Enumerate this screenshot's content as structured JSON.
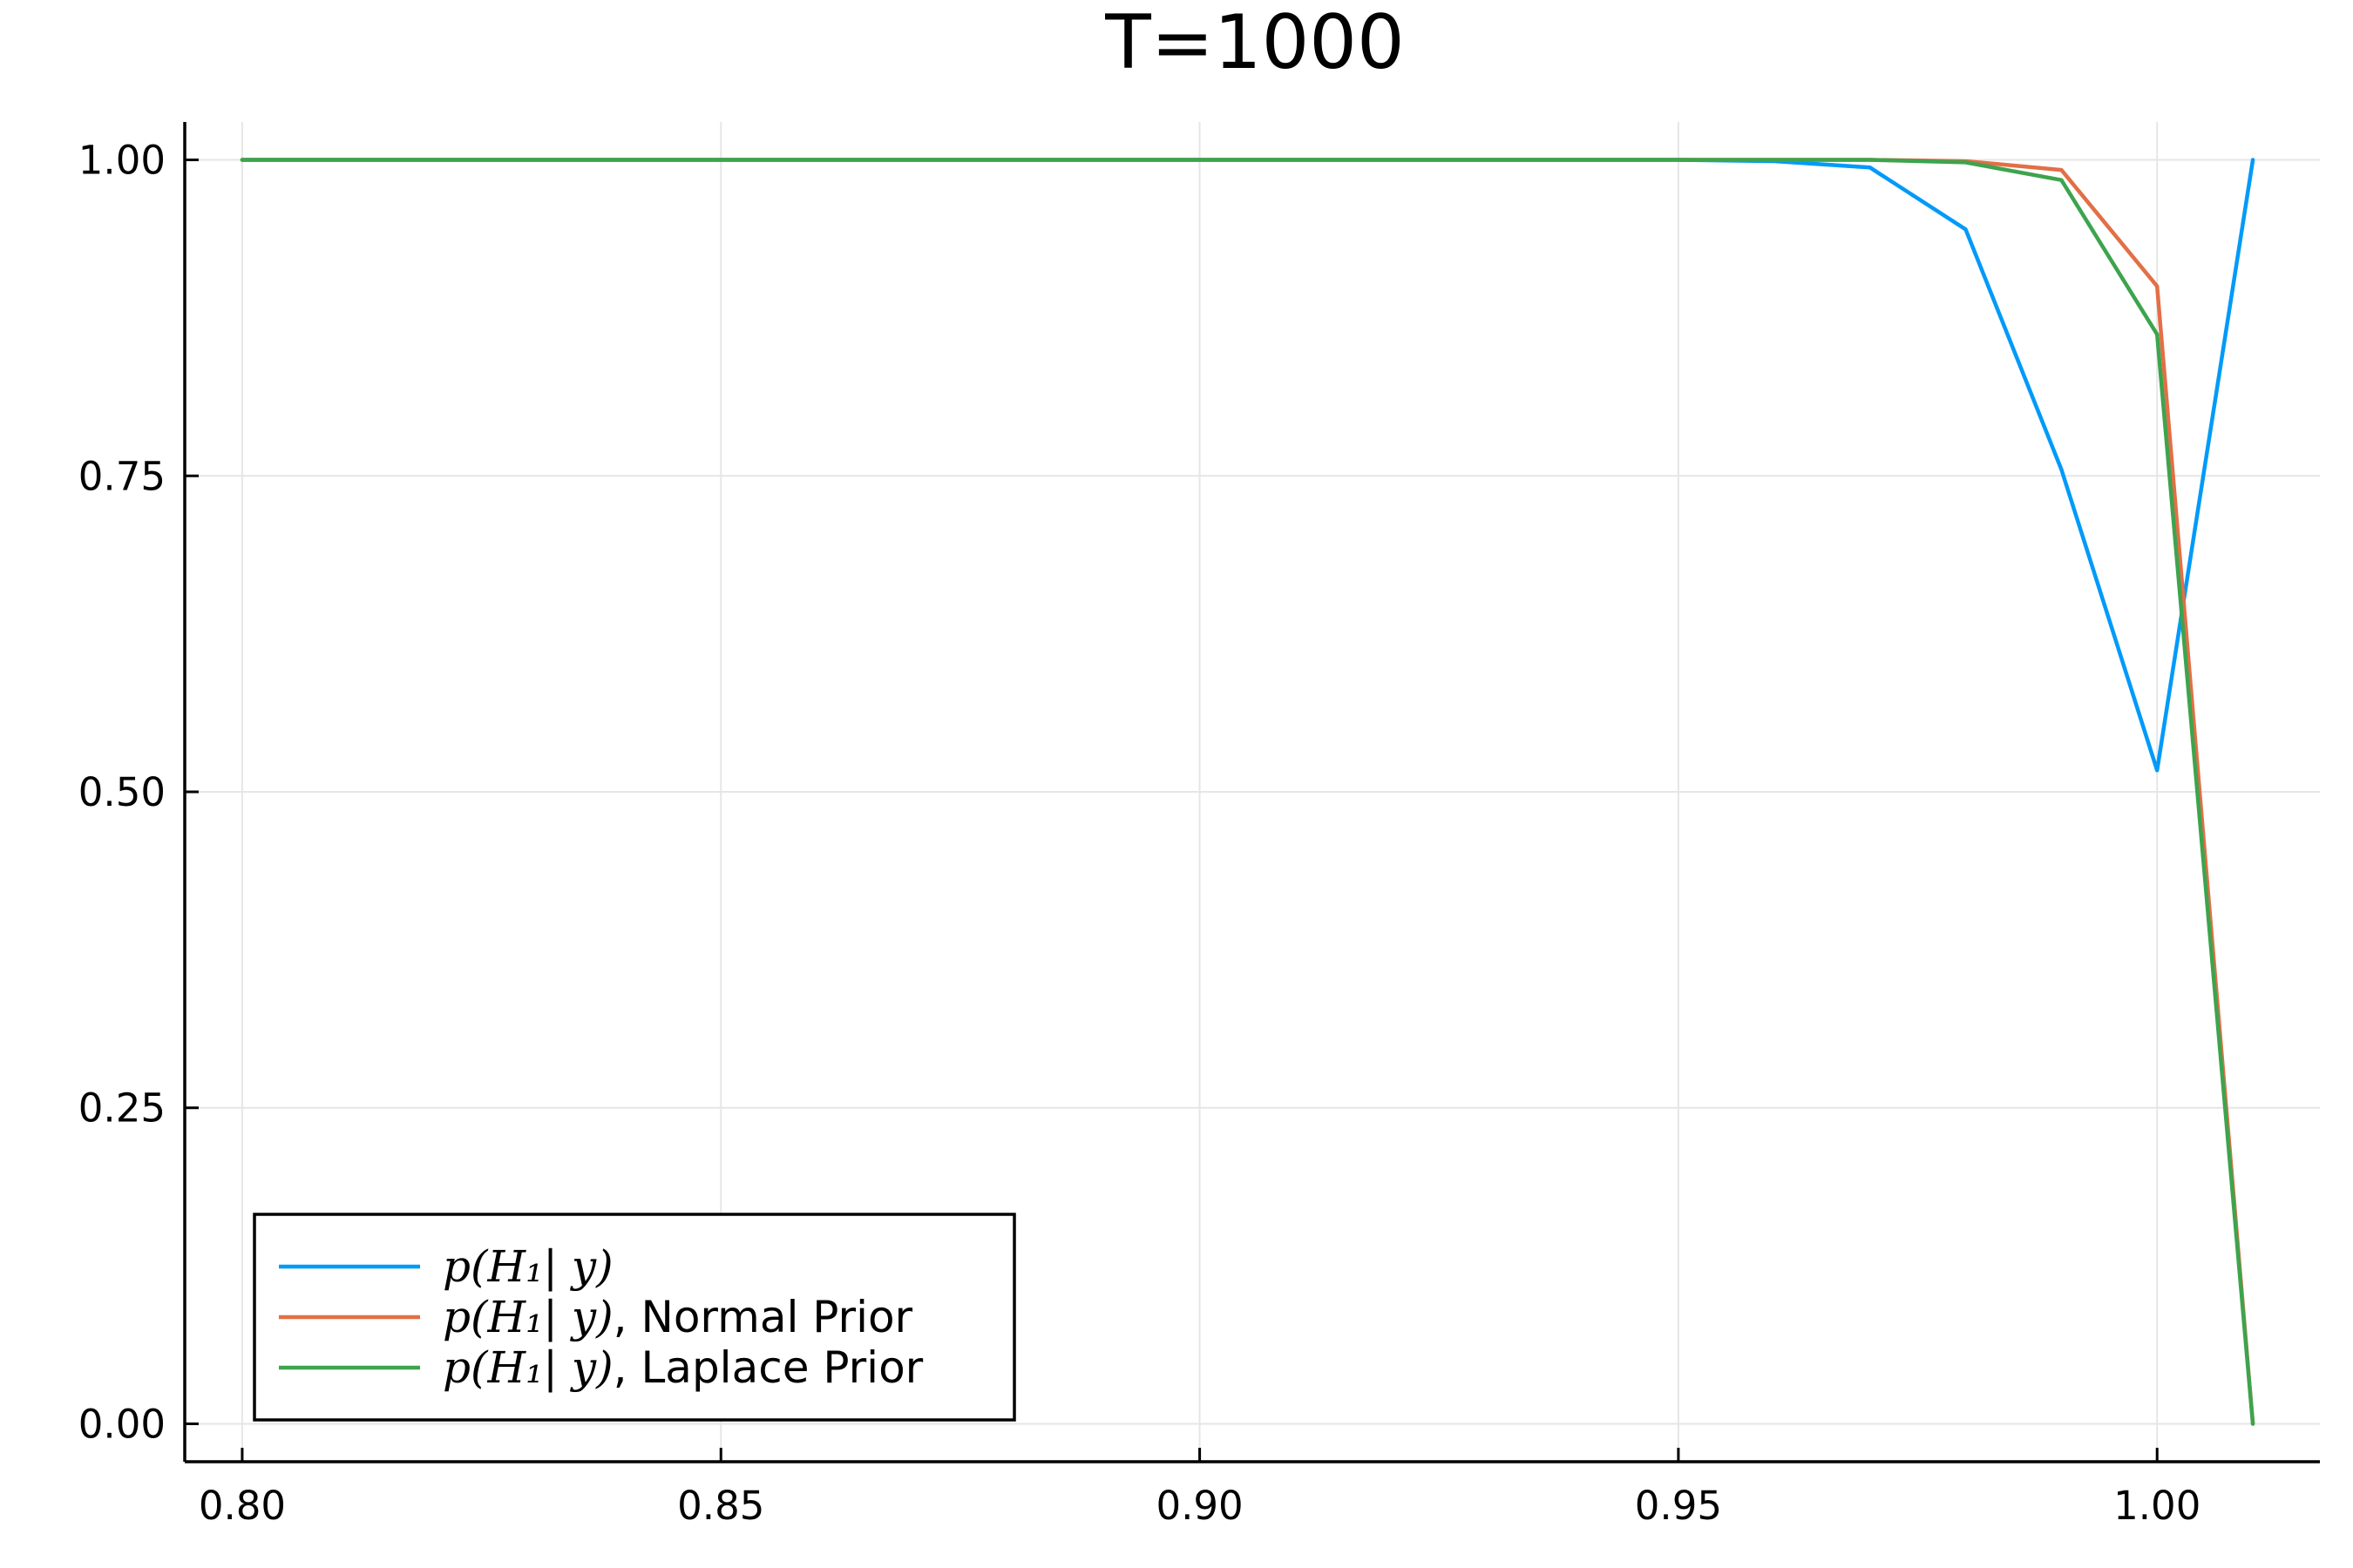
{
  "chart_data": {
    "type": "line",
    "title": "T=1000",
    "xlabel": "",
    "ylabel": "",
    "xlim": [
      0.794,
      1.017
    ],
    "ylim": [
      -0.03,
      1.03
    ],
    "xticks": [
      0.8,
      0.85,
      0.9,
      0.95,
      1.0
    ],
    "xtick_labels": [
      "0.80",
      "0.85",
      "0.90",
      "0.95",
      "1.00"
    ],
    "yticks": [
      0.0,
      0.25,
      0.5,
      0.75,
      1.0
    ],
    "ytick_labels": [
      "0.00",
      "0.25",
      "0.50",
      "0.75",
      "1.00"
    ],
    "grid": true,
    "legend_position": "bottom-left",
    "x": [
      0.8,
      0.81,
      0.82,
      0.83,
      0.84,
      0.85,
      0.86,
      0.87,
      0.88,
      0.89,
      0.9,
      0.91,
      0.92,
      0.93,
      0.94,
      0.95,
      0.96,
      0.97,
      0.98,
      0.99,
      1.0,
      1.01
    ],
    "series": [
      {
        "legend_math": "p(H₁| y)",
        "legend_suffix": "",
        "color": "#009af9",
        "values": [
          1,
          1,
          1,
          1,
          1,
          1,
          1,
          1,
          1,
          1,
          1,
          1,
          1,
          1,
          1,
          1,
          0.999,
          0.994,
          0.945,
          0.755,
          0.517,
          1.0
        ]
      },
      {
        "legend_math": "p(H₁| y)",
        "legend_suffix": ", Normal Prior",
        "color": "#e26f46",
        "values": [
          1,
          1,
          1,
          1,
          1,
          1,
          1,
          1,
          1,
          1,
          1,
          1,
          1,
          1,
          1,
          1,
          1,
          1,
          0.999,
          0.992,
          0.9,
          0.0
        ]
      },
      {
        "legend_math": "p(H₁| y)",
        "legend_suffix": ", Laplace Prior",
        "color": "#3da44d",
        "values": [
          1,
          1,
          1,
          1,
          1,
          1,
          1,
          1,
          1,
          1,
          1,
          1,
          1,
          1,
          1,
          1,
          1,
          1,
          0.998,
          0.984,
          0.862,
          0.0
        ]
      }
    ]
  }
}
